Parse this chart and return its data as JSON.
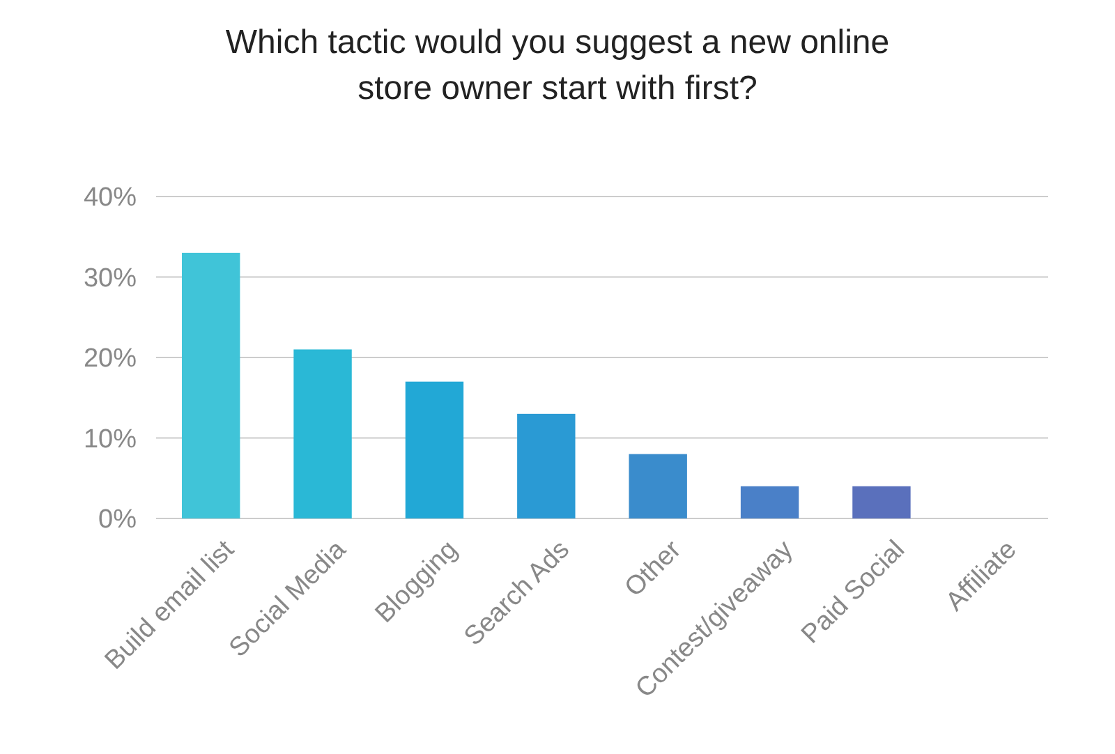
{
  "chart_data": {
    "type": "bar",
    "title": "Which tactic would you suggest a new online store owner start with first?",
    "categories": [
      "Build email list",
      "Social Media",
      "Blogging",
      "Search Ads",
      "Other",
      "Contest/giveaway",
      "Paid Social",
      "Affiliate"
    ],
    "values": [
      33,
      21,
      17,
      13,
      8,
      4,
      4,
      0
    ],
    "colors": [
      "#40c4d8",
      "#2ab8d6",
      "#22a8d6",
      "#2a9ad4",
      "#3a8ccc",
      "#4a80c8",
      "#5a70bc",
      "#6a64b4"
    ],
    "ylim": [
      0,
      40
    ],
    "yticks": [
      {
        "value": 0,
        "label": "0%"
      },
      {
        "value": 10,
        "label": "10%"
      },
      {
        "value": 20,
        "label": "20%"
      },
      {
        "value": 30,
        "label": "30%"
      },
      {
        "value": 40,
        "label": "40%"
      }
    ],
    "grid": "y"
  }
}
